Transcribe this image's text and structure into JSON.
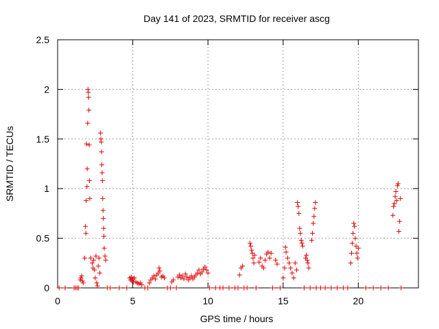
{
  "chart_data": {
    "type": "scatter",
    "title": "Day 141 of 2023, SRMTID for receiver ascg",
    "xlabel": "GPS time / hours",
    "ylabel": "SRMTID / TECUs",
    "xlim": [
      0,
      24
    ],
    "ylim": [
      0,
      2.5
    ],
    "xticks": [
      0,
      5,
      10,
      15,
      20
    ],
    "yticks": [
      0,
      0.5,
      1,
      1.5,
      2,
      2.5
    ],
    "xtick_labels": [
      "0",
      "5",
      "10",
      "15",
      "20"
    ],
    "ytick_labels": [
      "0",
      "0.5",
      "1",
      "1.5",
      "2",
      "2.5"
    ],
    "grid": true,
    "marker": "+",
    "color": "#e00000",
    "series": [
      {
        "name": "SRMTID",
        "points": [
          [
            0.1,
            0
          ],
          [
            0.5,
            0
          ],
          [
            1.1,
            0
          ],
          [
            1.2,
            0
          ],
          [
            1.3,
            0
          ],
          [
            1.4,
            0
          ],
          [
            1.5,
            0.08
          ],
          [
            1.55,
            0.1
          ],
          [
            1.6,
            0.12
          ],
          [
            1.65,
            0.07
          ],
          [
            1.7,
            0.05
          ],
          [
            1.8,
            0.3
          ],
          [
            1.85,
            0.62
          ],
          [
            1.88,
            0.55
          ],
          [
            1.9,
            0.88
          ],
          [
            1.92,
            1.45
          ],
          [
            1.95,
            1.02
          ],
          [
            1.97,
            1.2
          ],
          [
            2.0,
            1.66
          ],
          [
            2.02,
            2.0
          ],
          [
            2.04,
            1.97
          ],
          [
            2.06,
            1.92
          ],
          [
            2.08,
            1.79
          ],
          [
            2.1,
            1.44
          ],
          [
            2.12,
            1.08
          ],
          [
            2.14,
            0.9
          ],
          [
            2.2,
            0.3
          ],
          [
            2.3,
            0.25
          ],
          [
            2.35,
            0.2
          ],
          [
            2.4,
            0.28
          ],
          [
            2.45,
            0.18
          ],
          [
            2.5,
            0.1
          ],
          [
            2.55,
            0.32
          ],
          [
            2.6,
            0.05
          ],
          [
            2.65,
            0.02
          ],
          [
            2.7,
            0.22
          ],
          [
            2.75,
            0.3
          ],
          [
            2.8,
            0.15
          ],
          [
            2.85,
            1.56
          ],
          [
            2.88,
            1.5
          ],
          [
            2.9,
            1.47
          ],
          [
            2.92,
            1.37
          ],
          [
            2.94,
            1.24
          ],
          [
            2.96,
            1.16
          ],
          [
            2.98,
            1.08
          ],
          [
            3.0,
            0.9
          ],
          [
            3.02,
            0.78
          ],
          [
            3.04,
            0.7
          ],
          [
            3.06,
            0.6
          ],
          [
            3.08,
            0.52
          ],
          [
            3.1,
            0.4
          ],
          [
            3.15,
            0.32
          ],
          [
            3.2,
            0.28
          ],
          [
            3.3,
            0
          ],
          [
            3.5,
            0
          ],
          [
            4.1,
            0
          ],
          [
            4.6,
            0
          ],
          [
            4.8,
            0.1
          ],
          [
            4.85,
            0.08
          ],
          [
            4.9,
            0.11
          ],
          [
            4.95,
            0.07
          ],
          [
            5.0,
            0.09
          ],
          [
            5.05,
            0.06
          ],
          [
            5.1,
            0.1
          ],
          [
            5.2,
            0.06
          ],
          [
            5.3,
            0.05
          ],
          [
            5.4,
            0.04
          ],
          [
            5.5,
            0.05
          ],
          [
            5.6,
            0.03
          ],
          [
            5.8,
            0
          ],
          [
            6.0,
            0
          ],
          [
            6.1,
            0.05
          ],
          [
            6.2,
            0.08
          ],
          [
            6.3,
            0.1
          ],
          [
            6.4,
            0.12
          ],
          [
            6.5,
            0.09
          ],
          [
            6.6,
            0.13
          ],
          [
            6.7,
            0.15
          ],
          [
            6.75,
            0.2
          ],
          [
            6.8,
            0.17
          ],
          [
            6.9,
            0.11
          ],
          [
            7.0,
            0.12
          ],
          [
            7.1,
            0.1
          ],
          [
            7.3,
            0
          ],
          [
            7.5,
            0
          ],
          [
            7.6,
            0.06
          ],
          [
            7.7,
            0.08
          ],
          [
            7.9,
            0
          ],
          [
            8.0,
            0.11
          ],
          [
            8.1,
            0.13
          ],
          [
            8.2,
            0.1
          ],
          [
            8.3,
            0.12
          ],
          [
            8.4,
            0.09
          ],
          [
            8.5,
            0.14
          ],
          [
            8.6,
            0.11
          ],
          [
            8.7,
            0.08
          ],
          [
            8.8,
            0.1
          ],
          [
            8.9,
            0.12
          ],
          [
            9.0,
            0.09
          ],
          [
            9.1,
            0.11
          ],
          [
            9.2,
            0.13
          ],
          [
            9.3,
            0.15
          ],
          [
            9.4,
            0.18
          ],
          [
            9.5,
            0.14
          ],
          [
            9.6,
            0.16
          ],
          [
            9.7,
            0.19
          ],
          [
            9.8,
            0.21
          ],
          [
            9.9,
            0.18
          ],
          [
            10.0,
            0.15
          ],
          [
            10.1,
            0
          ],
          [
            10.5,
            0
          ],
          [
            10.8,
            0
          ],
          [
            11.0,
            0
          ],
          [
            11.4,
            0
          ],
          [
            11.8,
            0
          ],
          [
            12.0,
            0
          ],
          [
            12.1,
            0.13
          ],
          [
            12.2,
            0.2
          ],
          [
            12.3,
            0.22
          ],
          [
            12.4,
            0
          ],
          [
            12.6,
            0
          ],
          [
            12.8,
            0.45
          ],
          [
            12.85,
            0.42
          ],
          [
            12.9,
            0.38
          ],
          [
            12.95,
            0.35
          ],
          [
            13.0,
            0.3
          ],
          [
            13.05,
            0.25
          ],
          [
            13.1,
            0.33
          ],
          [
            13.2,
            0
          ],
          [
            13.4,
            0.26
          ],
          [
            13.5,
            0.3
          ],
          [
            13.6,
            0.22
          ],
          [
            13.7,
            0.2
          ],
          [
            13.8,
            0.28
          ],
          [
            13.9,
            0.34
          ],
          [
            14.0,
            0.36
          ],
          [
            14.1,
            0.3
          ],
          [
            14.2,
            0.35
          ],
          [
            14.3,
            0
          ],
          [
            14.5,
            0.28
          ],
          [
            14.6,
            0.24
          ],
          [
            14.8,
            0
          ],
          [
            15.0,
            0.1
          ],
          [
            15.1,
            0.2
          ],
          [
            15.15,
            0.41
          ],
          [
            15.2,
            0.36
          ],
          [
            15.3,
            0.3
          ],
          [
            15.4,
            0.25
          ],
          [
            15.5,
            0.2
          ],
          [
            15.6,
            0.15
          ],
          [
            15.7,
            0.1
          ],
          [
            15.8,
            0.25
          ],
          [
            15.9,
            0.18
          ],
          [
            15.95,
            0.86
          ],
          [
            16.0,
            0.82
          ],
          [
            16.05,
            0.75
          ],
          [
            16.1,
            0.6
          ],
          [
            16.15,
            0.55
          ],
          [
            16.2,
            0.48
          ],
          [
            16.25,
            0.45
          ],
          [
            16.3,
            0.42
          ],
          [
            16.4,
            0
          ],
          [
            16.5,
            0.3
          ],
          [
            16.55,
            0.33
          ],
          [
            16.6,
            0.28
          ],
          [
            16.65,
            0.25
          ],
          [
            16.7,
            0.2
          ],
          [
            16.8,
            0
          ],
          [
            16.9,
            0.48
          ],
          [
            16.95,
            0.55
          ],
          [
            17.0,
            0.65
          ],
          [
            17.05,
            0.72
          ],
          [
            17.1,
            0.8
          ],
          [
            17.15,
            0.86
          ],
          [
            17.2,
            0
          ],
          [
            17.5,
            0
          ],
          [
            17.8,
            0
          ],
          [
            18.2,
            0
          ],
          [
            18.6,
            0
          ],
          [
            19.0,
            0
          ],
          [
            19.3,
            0
          ],
          [
            19.5,
            0.25
          ],
          [
            19.55,
            0.35
          ],
          [
            19.6,
            0.45
          ],
          [
            19.65,
            0.55
          ],
          [
            19.7,
            0.65
          ],
          [
            19.75,
            0.62
          ],
          [
            19.8,
            0.5
          ],
          [
            19.85,
            0.42
          ],
          [
            19.9,
            0.35
          ],
          [
            19.95,
            0.3
          ],
          [
            20.0,
            0.4
          ],
          [
            20.5,
            0
          ],
          [
            21.0,
            0
          ],
          [
            21.5,
            0
          ],
          [
            22.0,
            0
          ],
          [
            22.3,
            0.73
          ],
          [
            22.35,
            0.82
          ],
          [
            22.4,
            0.85
          ],
          [
            22.45,
            0.92
          ],
          [
            22.5,
            0.97
          ],
          [
            22.55,
            0.88
          ],
          [
            22.6,
            1.03
          ],
          [
            22.65,
            1.05
          ],
          [
            22.7,
            0.57
          ],
          [
            22.75,
            0.67
          ],
          [
            22.8,
            0.9
          ],
          [
            22.85,
            0
          ]
        ]
      }
    ]
  }
}
